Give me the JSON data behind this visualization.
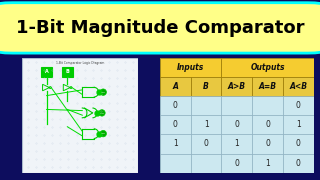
{
  "title": "1-Bit Magnitude Comparator",
  "title_bg": "#FFFF88",
  "title_color": "#000000",
  "title_fontsize": 13,
  "title_fontweight": "bold",
  "title_border": "#00FFFF",
  "bg_color": "#0d0d5e",
  "table_header1": "Inputs",
  "table_header2": "Outputs",
  "col_labels": [
    "A",
    "B",
    "A>B",
    "A=B",
    "A<B"
  ],
  "table_data": [
    [
      "0",
      "",
      "",
      "",
      "0"
    ],
    [
      "0",
      "1",
      "0",
      "0",
      "1"
    ],
    [
      "1",
      "0",
      "1",
      "0",
      "0"
    ],
    [
      "",
      "",
      "0",
      "1",
      "0"
    ]
  ],
  "table_header_bg": "#F5CC30",
  "table_col_bg": "#E8C840",
  "table_cell_bg": "#cce8f0",
  "table_bg": "#b8dff0",
  "logic_diagram_bg": "#f0f4f8",
  "logic_diagram_border": "#aabbcc",
  "logic_title": "1-Bit Comparator Logic Diagram",
  "wire_color": "#00dd00",
  "gate_color": "#00cc00",
  "dot_color": "#00cc00"
}
